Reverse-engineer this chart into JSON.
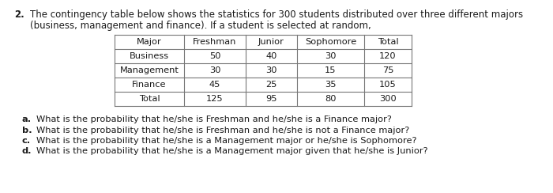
{
  "problem_number": "2.",
  "intro_line1": "The contingency table below shows the statistics for 300 students distributed over three different majors",
  "intro_line2": "(business, management and finance). If a student is selected at random,",
  "table_headers": [
    "Major",
    "Freshman",
    "Junior",
    "Sophomore",
    "Total"
  ],
  "table_rows": [
    [
      "Business",
      "50",
      "40",
      "30",
      "120"
    ],
    [
      "Management",
      "30",
      "30",
      "15",
      "75"
    ],
    [
      "Finance",
      "45",
      "25",
      "35",
      "105"
    ],
    [
      "Total",
      "125",
      "95",
      "80",
      "300"
    ]
  ],
  "questions": [
    [
      "a.",
      "What is the probability that he/she is Freshman and he/she is a Finance major?"
    ],
    [
      "b.",
      "What is the probability that he/she is Freshman and he/she is not a Finance major?"
    ],
    [
      "c.",
      "What is the probability that he/she is a Management major or he/she is Sophomore?"
    ],
    [
      "d.",
      "What is the probability that he/she is a Management major given that he/she is Junior?"
    ]
  ],
  "bg_color": "#ffffff",
  "text_color": "#1a1a1a",
  "table_line_color": "#777777",
  "font_size_intro": 8.5,
  "font_size_table": 8.2,
  "font_size_questions": 8.2,
  "fig_width": 7.0,
  "fig_height": 2.44,
  "dpi": 100
}
